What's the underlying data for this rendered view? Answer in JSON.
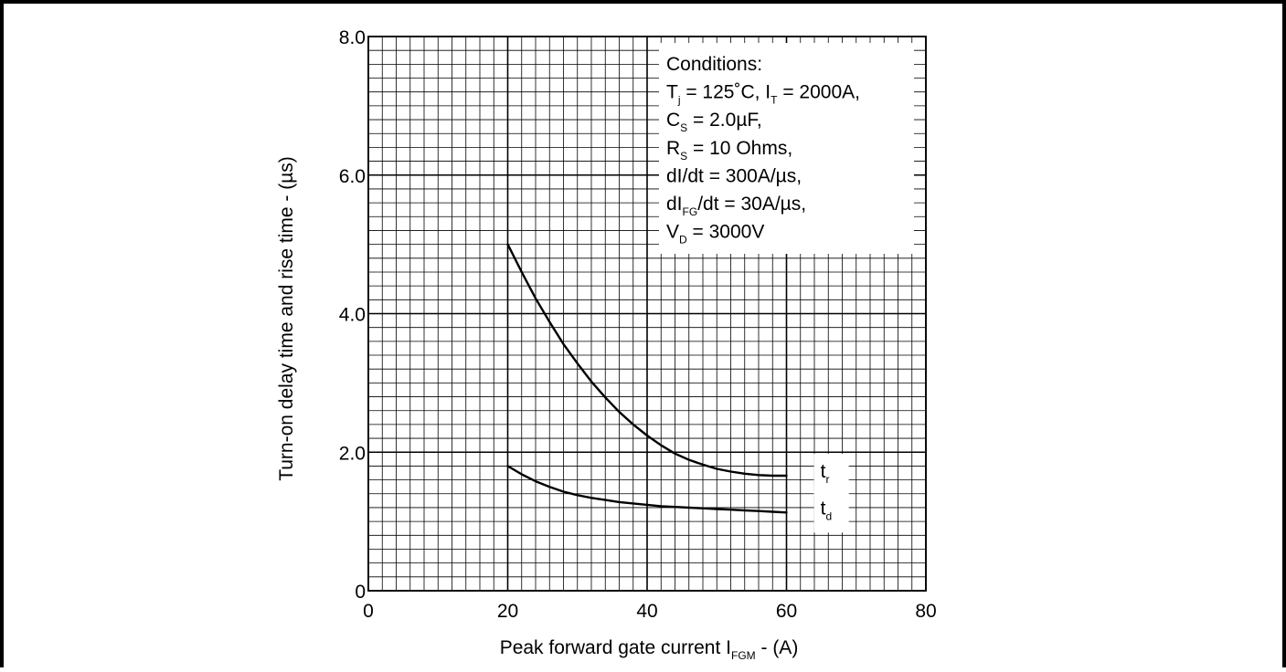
{
  "chart_data": {
    "type": "line",
    "xlabel": "Peak forward gate current I",
    "xlabel_sub": "FGM",
    "xlabel_tail": " - (A)",
    "ylabel": "Turn-on delay time and rise time - (µs)",
    "xlim": [
      0,
      80
    ],
    "ylim": [
      0,
      8
    ],
    "x_ticks": [
      {
        "value": 0,
        "label": "0"
      },
      {
        "value": 20,
        "label": "20"
      },
      {
        "value": 40,
        "label": "40"
      },
      {
        "value": 60,
        "label": "60"
      },
      {
        "value": 80,
        "label": "80"
      }
    ],
    "y_ticks": [
      {
        "value": 0,
        "label": "0"
      },
      {
        "value": 2,
        "label": "2.0"
      },
      {
        "value": 4,
        "label": "4.0"
      },
      {
        "value": 6,
        "label": "6.0"
      },
      {
        "value": 8,
        "label": "8.0"
      }
    ],
    "grid": {
      "major_x": 20,
      "major_y": 2,
      "minor_x": 2,
      "minor_y": 0.2
    },
    "series": [
      {
        "name": "t",
        "name_sub": "r",
        "x": [
          20,
          22,
          24,
          26,
          28,
          30,
          32,
          34,
          36,
          38,
          40,
          42,
          44,
          46,
          48,
          50,
          52,
          54,
          56,
          58,
          60
        ],
        "y": [
          5.0,
          4.6,
          4.22,
          3.88,
          3.56,
          3.28,
          3.02,
          2.79,
          2.58,
          2.4,
          2.24,
          2.1,
          1.98,
          1.89,
          1.82,
          1.76,
          1.72,
          1.69,
          1.67,
          1.66,
          1.66
        ]
      },
      {
        "name": "t",
        "name_sub": "d",
        "x": [
          20,
          22,
          24,
          26,
          28,
          30,
          32,
          34,
          36,
          38,
          40,
          42,
          44,
          46,
          48,
          50,
          52,
          54,
          56,
          58,
          60
        ],
        "y": [
          1.8,
          1.68,
          1.58,
          1.5,
          1.43,
          1.38,
          1.34,
          1.31,
          1.28,
          1.26,
          1.24,
          1.22,
          1.21,
          1.2,
          1.19,
          1.18,
          1.17,
          1.16,
          1.15,
          1.14,
          1.13
        ]
      }
    ],
    "conditions": [
      {
        "parts": [
          {
            "t": "Conditions:"
          }
        ]
      },
      {
        "parts": [
          {
            "t": "T"
          },
          {
            "s": "j"
          },
          {
            "t": " = 125˚C, I"
          },
          {
            "s": "T"
          },
          {
            "t": " = 2000A,"
          }
        ]
      },
      {
        "parts": [
          {
            "t": "C"
          },
          {
            "s": "S"
          },
          {
            "t": " = 2.0µF,"
          }
        ]
      },
      {
        "parts": [
          {
            "t": "R"
          },
          {
            "s": "S"
          },
          {
            "t": " = 10 Ohms,"
          }
        ]
      },
      {
        "parts": [
          {
            "t": "dI/dt = 300A/µs,"
          }
        ]
      },
      {
        "parts": [
          {
            "t": "dI"
          },
          {
            "s": "FG"
          },
          {
            "t": "/dt = 30A/µs,"
          }
        ]
      },
      {
        "parts": [
          {
            "t": "V"
          },
          {
            "s": "D"
          },
          {
            "t": " = 3000V"
          }
        ]
      }
    ]
  }
}
